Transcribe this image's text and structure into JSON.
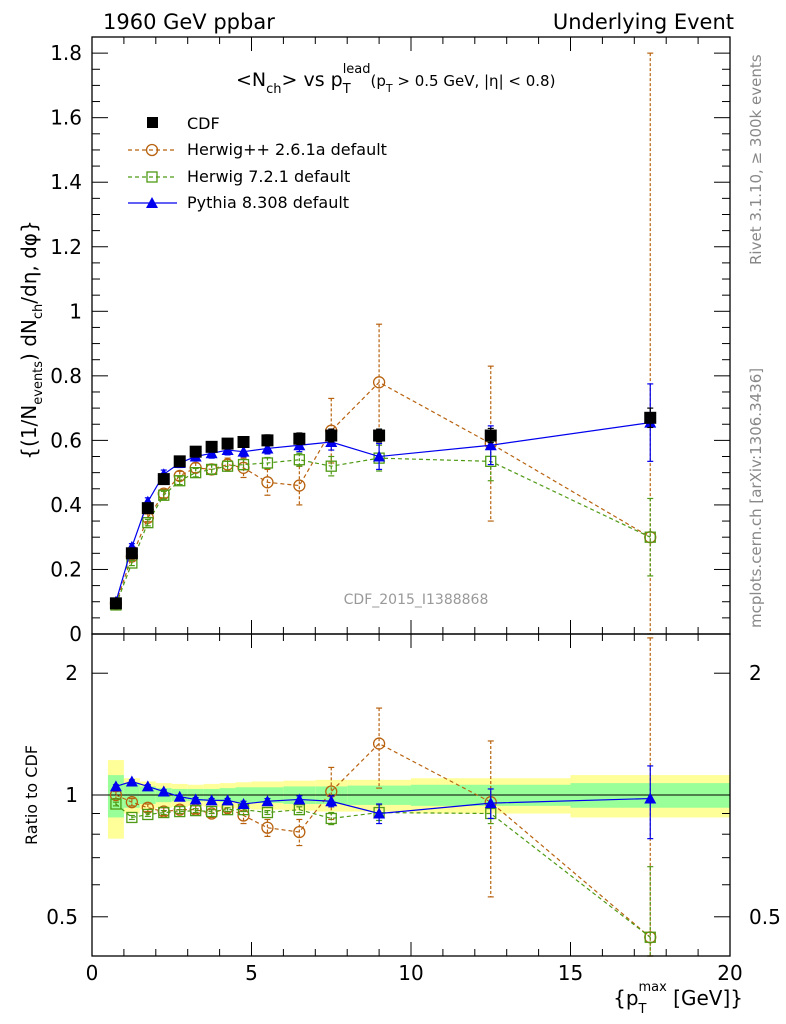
{
  "header": {
    "left": "1960 GeV ppbar",
    "right": "Underlying Event"
  },
  "title_parts": {
    "a": "<N",
    "a_sub": "ch",
    "b": "> vs p",
    "b_sub": "T",
    "b_sup": "lead",
    "c": "(p",
    "c_sub": "T",
    "d": " > 0.5 GeV, |η| < 0.8)"
  },
  "side_text": {
    "rivet": "Rivet 3.1.10, ≥ 300k events",
    "mcplots": "mcplots.cern.ch [arXiv:1306.3436]"
  },
  "watermark": "CDF_2015_I1388868",
  "ylabel_main": "{(1/N_events) dN_ch/dη, dφ}",
  "ylabel_ratio": "Ratio to CDF",
  "xlabel": "{p_T^max [GeV]}",
  "ratio_ticklabels": {
    "upper": "2",
    "one": "1",
    "half": "0.5"
  },
  "ratio_right_labels": {
    "upper": "2",
    "half": "0.5"
  },
  "main_ticklabels": [
    "0",
    "0.2",
    "0.4",
    "0.6",
    "0.8",
    "1",
    "1.2",
    "1.4",
    "1.6",
    "1.8"
  ],
  "x_ticklabels": [
    "0",
    "5",
    "10",
    "15",
    "20"
  ],
  "legend": {
    "cdf": "CDF",
    "herwigpp": "Herwig++ 2.6.1a default",
    "herwig7": "Herwig 7.2.1 default",
    "pythia": "Pythia 8.308 default"
  },
  "colors": {
    "cdf": "#000000",
    "herwigpp": "#b8620f",
    "herwig7": "#4f9a14",
    "pythia": "#0000ee",
    "band_inner": "#99ff99",
    "band_outer": "#ffff99"
  },
  "chart_data": {
    "type": "scatter",
    "main": {
      "xlim": [
        0,
        20
      ],
      "ylim": [
        0,
        1.85
      ],
      "ylabel": "{(1/N_events) dN_ch/dη, dφ}",
      "series": [
        {
          "name": "CDF",
          "x": [
            0.75,
            1.25,
            1.75,
            2.25,
            2.75,
            3.25,
            3.75,
            4.25,
            4.75,
            5.5,
            6.5,
            7.5,
            9.0,
            12.5,
            17.5
          ],
          "y": [
            0.095,
            0.25,
            0.39,
            0.48,
            0.535,
            0.565,
            0.58,
            0.59,
            0.595,
            0.6,
            0.605,
            0.615,
            0.615,
            0.615,
            0.67
          ],
          "err": [
            0.005,
            0.01,
            0.012,
            0.013,
            0.014,
            0.015,
            0.015,
            0.015,
            0.016,
            0.017,
            0.018,
            0.02,
            0.02,
            0.022,
            0.03
          ]
        },
        {
          "name": "Herwig++ 2.6.1a default",
          "x": [
            0.75,
            1.25,
            1.75,
            2.25,
            2.75,
            3.25,
            3.75,
            4.25,
            4.75,
            5.5,
            6.5,
            7.5,
            9.0,
            12.5,
            17.5
          ],
          "y": [
            0.095,
            0.24,
            0.36,
            0.435,
            0.49,
            0.515,
            0.51,
            0.525,
            0.515,
            0.47,
            0.46,
            0.63,
            0.78,
            0.59,
            0.3
          ],
          "err": [
            0.005,
            0.01,
            0.012,
            0.013,
            0.014,
            0.015,
            0.016,
            0.02,
            0.03,
            0.04,
            0.06,
            0.1,
            0.18,
            0.24,
            1.5
          ]
        },
        {
          "name": "Herwig 7.2.1 default",
          "x": [
            0.75,
            1.25,
            1.75,
            2.25,
            2.75,
            3.25,
            3.75,
            4.25,
            4.75,
            5.5,
            6.5,
            7.5,
            9.0,
            12.5,
            17.5
          ],
          "y": [
            0.09,
            0.22,
            0.345,
            0.43,
            0.475,
            0.5,
            0.51,
            0.52,
            0.525,
            0.53,
            0.54,
            0.52,
            0.545,
            0.535,
            0.3
          ],
          "err": [
            0.004,
            0.008,
            0.01,
            0.012,
            0.012,
            0.013,
            0.014,
            0.015,
            0.016,
            0.017,
            0.02,
            0.03,
            0.04,
            0.06,
            0.12
          ]
        },
        {
          "name": "Pythia 8.308 default",
          "x": [
            0.75,
            1.25,
            1.75,
            2.25,
            2.75,
            3.25,
            3.75,
            4.25,
            4.75,
            5.5,
            6.5,
            7.5,
            9.0,
            12.5,
            17.5
          ],
          "y": [
            0.1,
            0.27,
            0.41,
            0.495,
            0.53,
            0.55,
            0.56,
            0.57,
            0.565,
            0.575,
            0.585,
            0.595,
            0.55,
            0.585,
            0.655
          ],
          "err": [
            0.005,
            0.01,
            0.012,
            0.013,
            0.014,
            0.014,
            0.015,
            0.015,
            0.016,
            0.017,
            0.02,
            0.025,
            0.04,
            0.06,
            0.12
          ]
        }
      ]
    },
    "ratio": {
      "xlim": [
        0,
        20
      ],
      "scale": "log",
      "ylim": [
        0.4,
        2.5
      ],
      "ylabel": "Ratio to CDF",
      "xlabel": "{p_T^max [GeV]}",
      "bands": {
        "x_edges": [
          0.5,
          1.0,
          1.5,
          2.0,
          2.5,
          3.0,
          3.5,
          4.0,
          4.5,
          5.0,
          6.0,
          7.0,
          8.0,
          10.0,
          15.0,
          20.0
        ],
        "inner": [
          0.12,
          0.07,
          0.05,
          0.04,
          0.035,
          0.035,
          0.035,
          0.04,
          0.045,
          0.045,
          0.05,
          0.05,
          0.055,
          0.06,
          0.07
        ],
        "outer": [
          0.22,
          0.1,
          0.08,
          0.07,
          0.065,
          0.06,
          0.065,
          0.07,
          0.075,
          0.08,
          0.085,
          0.09,
          0.09,
          0.1,
          0.12
        ]
      },
      "series": [
        {
          "name": "Herwig++ 2.6.1a default",
          "x": [
            0.75,
            1.25,
            1.75,
            2.25,
            2.75,
            3.25,
            3.75,
            4.25,
            4.75,
            5.5,
            6.5,
            7.5,
            9.0,
            12.5,
            17.5
          ],
          "y": [
            1.0,
            0.96,
            0.93,
            0.91,
            0.92,
            0.92,
            0.9,
            0.93,
            0.89,
            0.83,
            0.81,
            1.02,
            1.34,
            0.96,
            0.445
          ],
          "err": [
            0.02,
            0.02,
            0.02,
            0.02,
            0.02,
            0.02,
            0.02,
            0.03,
            0.04,
            0.04,
            0.06,
            0.15,
            0.3,
            0.4,
            2.0
          ]
        },
        {
          "name": "Herwig 7.2.1 default",
          "x": [
            0.75,
            1.25,
            1.75,
            2.25,
            2.75,
            3.25,
            3.75,
            4.25,
            4.75,
            5.5,
            6.5,
            7.5,
            9.0,
            12.5,
            17.5
          ],
          "y": [
            0.95,
            0.88,
            0.895,
            0.905,
            0.91,
            0.915,
            0.91,
            0.92,
            0.92,
            0.905,
            0.92,
            0.875,
            0.905,
            0.9,
            0.445
          ],
          "err": [
            0.01,
            0.01,
            0.01,
            0.01,
            0.01,
            0.01,
            0.01,
            0.01,
            0.01,
            0.01,
            0.015,
            0.03,
            0.04,
            0.05,
            0.22
          ]
        },
        {
          "name": "Pythia 8.308 default",
          "x": [
            0.75,
            1.25,
            1.75,
            2.25,
            2.75,
            3.25,
            3.75,
            4.25,
            4.75,
            5.5,
            6.5,
            7.5,
            9.0,
            12.5,
            17.5
          ],
          "y": [
            1.05,
            1.08,
            1.05,
            1.02,
            0.99,
            0.975,
            0.97,
            0.97,
            0.95,
            0.965,
            0.975,
            0.965,
            0.9,
            0.955,
            0.98
          ],
          "err": [
            0.01,
            0.01,
            0.01,
            0.01,
            0.01,
            0.01,
            0.01,
            0.01,
            0.015,
            0.015,
            0.02,
            0.03,
            0.05,
            0.08,
            0.2
          ]
        }
      ]
    }
  }
}
